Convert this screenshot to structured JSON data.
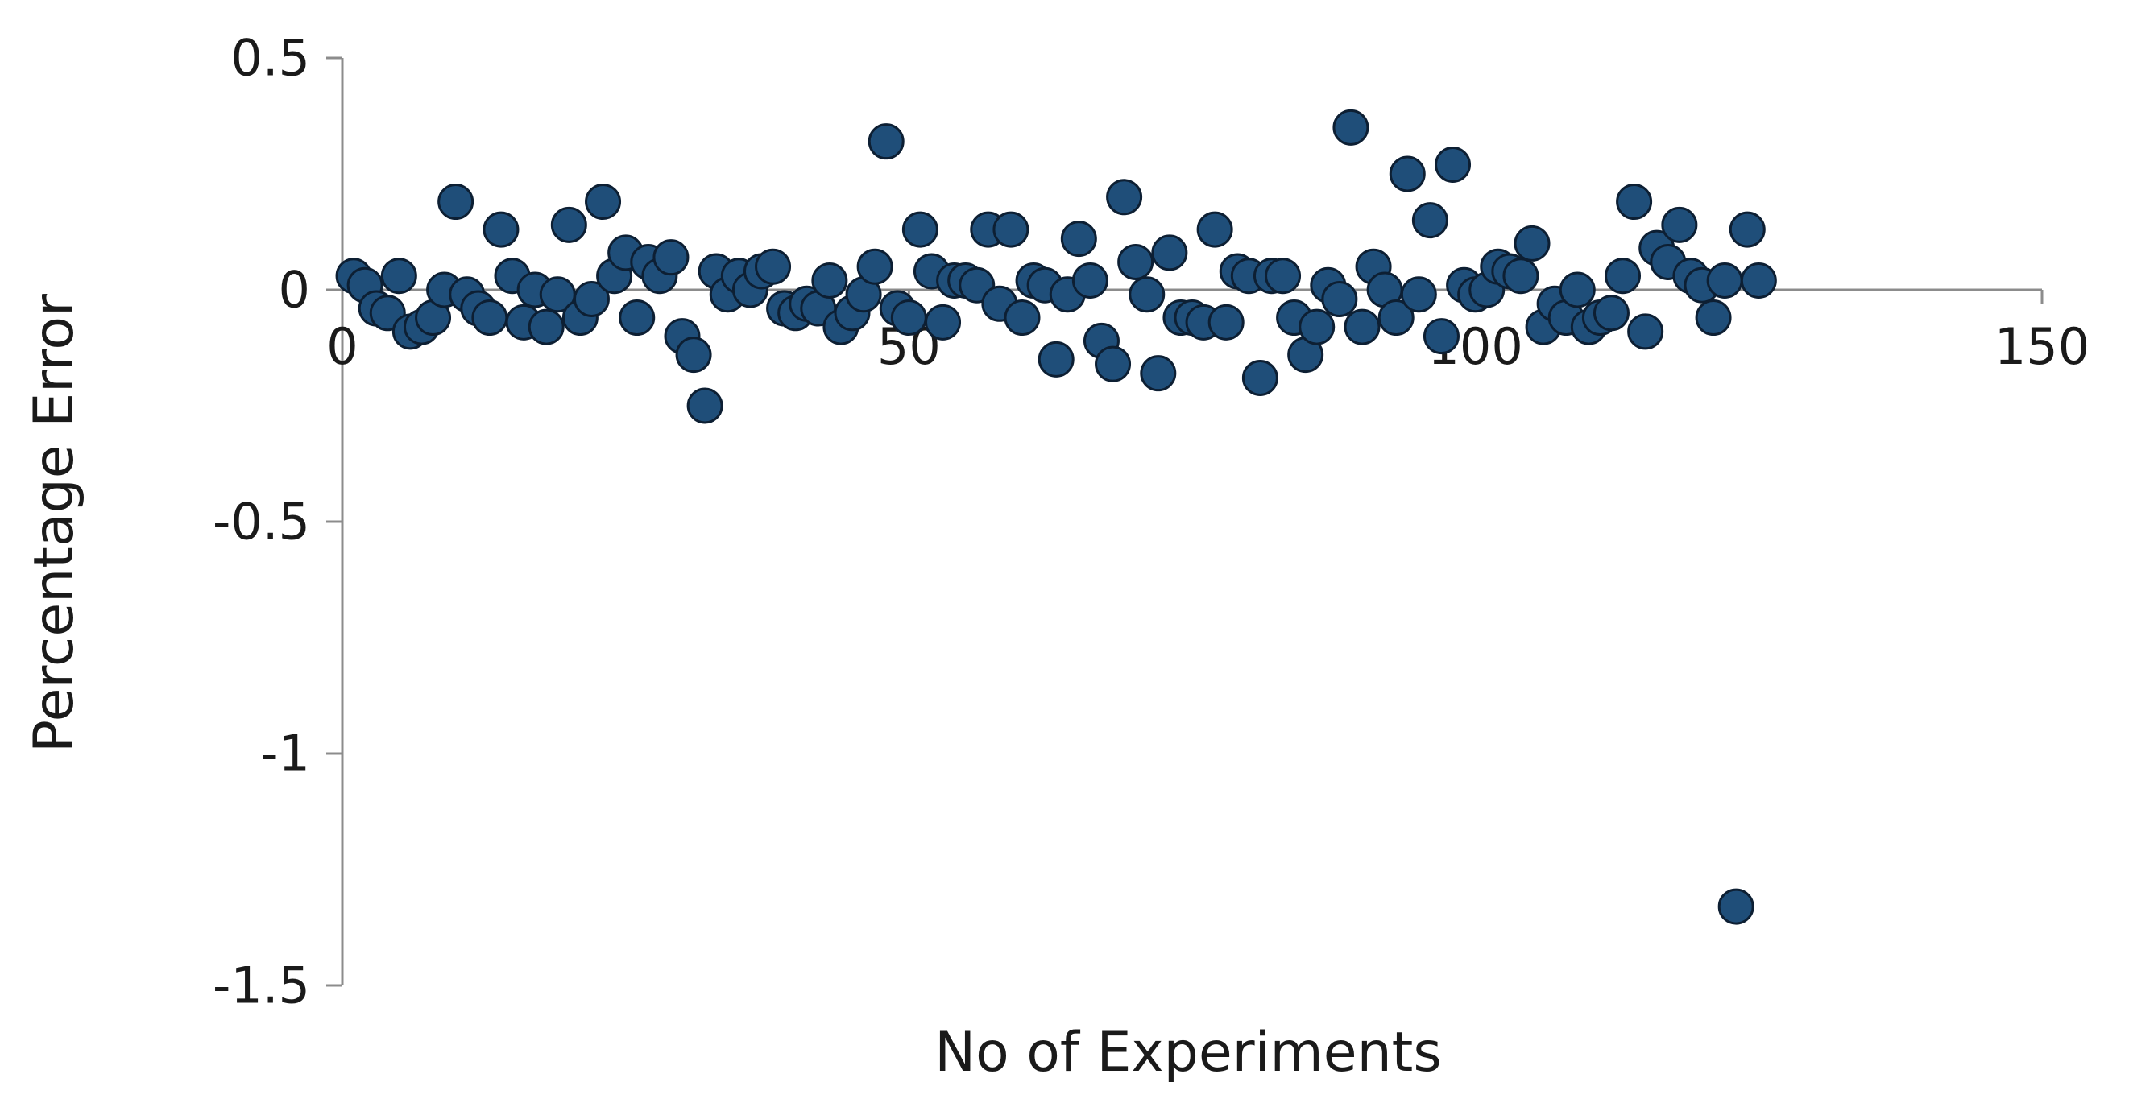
{
  "chart_data": {
    "type": "scatter",
    "xlabel": "No of Experiments",
    "ylabel": "Percentage Error",
    "xlim": [
      0,
      150
    ],
    "ylim": [
      -1.5,
      0.5
    ],
    "x_ticks": [
      0,
      50,
      100,
      150
    ],
    "x_tick_labels": [
      "0",
      "50",
      "100",
      "150"
    ],
    "y_ticks": [
      0.5,
      0,
      -0.5,
      -1,
      -1.5
    ],
    "y_tick_labels": [
      "0.5",
      "0",
      "-0.5",
      "-1",
      "-1.5"
    ],
    "grid": false,
    "legend": "none",
    "marker_color": "#1f4e79",
    "marker_edge_color": "#0d1f33",
    "axis_color": "#8c8c8c",
    "series": [
      {
        "x": [
          1,
          2,
          3,
          4,
          5,
          6,
          7,
          8,
          9,
          10,
          11,
          12,
          13,
          14,
          15,
          16,
          17,
          18,
          19,
          20,
          21,
          22,
          23,
          24,
          25,
          26,
          27,
          28,
          29,
          30,
          31,
          32,
          33,
          34,
          35,
          36,
          37,
          38,
          39,
          40,
          41,
          42,
          43,
          44,
          45,
          46,
          47,
          48,
          49,
          50,
          51,
          52,
          53,
          54,
          55,
          56,
          57,
          58,
          59,
          60,
          61,
          62,
          63,
          64,
          65,
          66,
          67,
          68,
          69,
          70,
          71,
          72,
          73,
          74,
          75,
          76,
          77,
          78,
          79,
          80,
          81,
          82,
          83,
          84,
          85,
          86,
          87,
          88,
          89,
          90,
          91,
          92,
          93,
          94,
          95,
          96,
          97,
          98,
          99,
          100,
          101,
          102,
          103,
          104,
          105,
          106,
          107,
          108,
          109,
          110,
          111,
          112,
          113,
          114,
          115,
          116,
          117,
          118,
          119,
          120,
          121,
          122,
          123,
          124,
          125
        ],
        "y": [
          0.03,
          0.01,
          -0.04,
          -0.05,
          0.03,
          -0.09,
          -0.08,
          -0.06,
          0.0,
          0.19,
          -0.01,
          -0.04,
          -0.06,
          0.13,
          0.03,
          -0.07,
          0.0,
          -0.08,
          -0.01,
          0.14,
          -0.06,
          -0.02,
          0.19,
          0.03,
          0.08,
          -0.06,
          0.06,
          0.03,
          0.07,
          -0.1,
          -0.14,
          -0.25,
          0.04,
          -0.01,
          0.03,
          0.0,
          0.04,
          0.05,
          -0.04,
          -0.05,
          -0.03,
          -0.04,
          0.02,
          -0.08,
          -0.05,
          -0.01,
          0.05,
          0.32,
          -0.04,
          -0.06,
          0.13,
          0.04,
          -0.07,
          0.02,
          0.02,
          0.01,
          0.13,
          -0.03,
          0.13,
          -0.06,
          0.02,
          0.01,
          -0.15,
          -0.01,
          0.11,
          0.02,
          -0.11,
          -0.16,
          0.2,
          0.06,
          -0.01,
          -0.18,
          0.08,
          -0.06,
          -0.06,
          -0.07,
          0.13,
          -0.07,
          0.04,
          0.03,
          -0.19,
          0.03,
          0.03,
          -0.06,
          -0.14,
          -0.08,
          0.01,
          -0.02,
          0.35,
          -0.08,
          0.05,
          0.0,
          -0.06,
          0.25,
          -0.01,
          0.15,
          -0.1,
          0.27,
          0.01,
          -0.01,
          0.0,
          0.05,
          0.04,
          0.03,
          0.1,
          -0.08,
          -0.03,
          -0.06,
          0.0,
          -0.08,
          -0.06,
          -0.05,
          0.03,
          0.19,
          -0.09,
          0.09,
          0.06,
          0.14,
          0.03,
          0.01,
          -0.06,
          0.02,
          -1.33,
          0.13,
          0.02
        ]
      }
    ]
  }
}
